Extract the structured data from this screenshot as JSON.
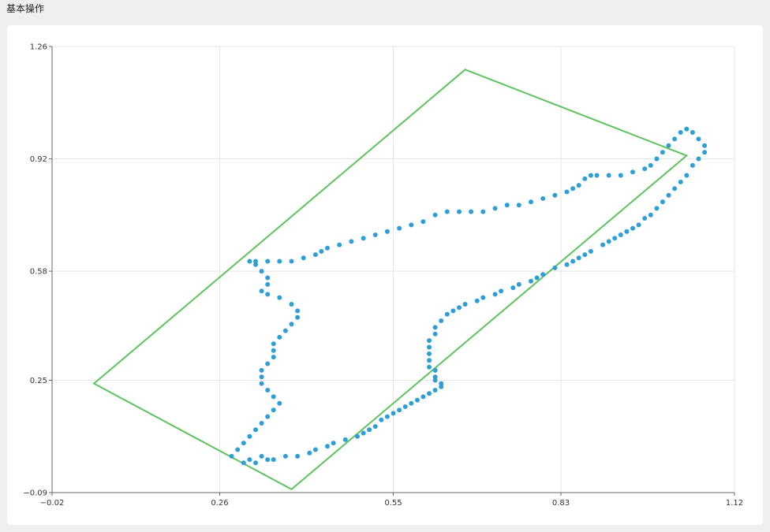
{
  "page": {
    "title": "基本操作"
  },
  "colors": {
    "points": "#2e9fd6",
    "polygon": "#5ec35e",
    "grid": "#e6e6e6",
    "axis": "#666666"
  },
  "chart_data": {
    "type": "scatter",
    "xlim": [
      -0.02,
      1.12
    ],
    "ylim": [
      -0.09,
      1.26
    ],
    "x_ticks": [
      -0.02,
      0.26,
      0.55,
      0.83,
      1.12
    ],
    "y_ticks": [
      -0.09,
      0.25,
      0.58,
      0.92,
      1.26
    ],
    "x_tick_labels": [
      "−0.02",
      "0.26",
      "0.55",
      "0.83",
      "1.12"
    ],
    "y_tick_labels": [
      "−0.09",
      "0.25",
      "0.58",
      "0.92",
      "1.26"
    ],
    "grid": true,
    "polygon": {
      "points": [
        [
          0.67,
          1.19
        ],
        [
          1.04,
          0.93
        ],
        [
          0.38,
          -0.08
        ],
        [
          0.05,
          0.24
        ]
      ]
    },
    "series": [
      {
        "values": [
          [
            0.3,
            0.0
          ],
          [
            0.31,
            0.01
          ],
          [
            0.32,
            0.0
          ],
          [
            0.33,
            0.02
          ],
          [
            0.34,
            0.01
          ],
          [
            0.35,
            0.01
          ],
          [
            0.37,
            0.02
          ],
          [
            0.39,
            0.02
          ],
          [
            0.41,
            0.03
          ],
          [
            0.42,
            0.04
          ],
          [
            0.44,
            0.05
          ],
          [
            0.45,
            0.06
          ],
          [
            0.47,
            0.07
          ],
          [
            0.49,
            0.08
          ],
          [
            0.5,
            0.09
          ],
          [
            0.51,
            0.1
          ],
          [
            0.52,
            0.11
          ],
          [
            0.53,
            0.13
          ],
          [
            0.54,
            0.14
          ],
          [
            0.55,
            0.15
          ],
          [
            0.56,
            0.16
          ],
          [
            0.57,
            0.17
          ],
          [
            0.58,
            0.18
          ],
          [
            0.59,
            0.19
          ],
          [
            0.6,
            0.2
          ],
          [
            0.61,
            0.21
          ],
          [
            0.62,
            0.22
          ],
          [
            0.63,
            0.23
          ],
          [
            0.63,
            0.24
          ],
          [
            0.62,
            0.25
          ],
          [
            0.62,
            0.26
          ],
          [
            0.62,
            0.28
          ],
          [
            0.61,
            0.29
          ],
          [
            0.61,
            0.31
          ],
          [
            0.61,
            0.33
          ],
          [
            0.61,
            0.35
          ],
          [
            0.61,
            0.37
          ],
          [
            0.62,
            0.39
          ],
          [
            0.62,
            0.41
          ],
          [
            0.63,
            0.43
          ],
          [
            0.64,
            0.45
          ],
          [
            0.65,
            0.46
          ],
          [
            0.66,
            0.47
          ],
          [
            0.67,
            0.48
          ],
          [
            0.69,
            0.49
          ],
          [
            0.7,
            0.5
          ],
          [
            0.72,
            0.51
          ],
          [
            0.73,
            0.52
          ],
          [
            0.75,
            0.53
          ],
          [
            0.76,
            0.54
          ],
          [
            0.78,
            0.55
          ],
          [
            0.79,
            0.56
          ],
          [
            0.8,
            0.57
          ],
          [
            0.82,
            0.59
          ],
          [
            0.84,
            0.6
          ],
          [
            0.85,
            0.61
          ],
          [
            0.86,
            0.62
          ],
          [
            0.87,
            0.63
          ],
          [
            0.88,
            0.64
          ],
          [
            0.9,
            0.66
          ],
          [
            0.91,
            0.67
          ],
          [
            0.92,
            0.68
          ],
          [
            0.93,
            0.69
          ],
          [
            0.94,
            0.7
          ],
          [
            0.95,
            0.71
          ],
          [
            0.96,
            0.72
          ],
          [
            0.97,
            0.74
          ],
          [
            0.98,
            0.75
          ],
          [
            0.99,
            0.77
          ],
          [
            1.0,
            0.79
          ],
          [
            1.01,
            0.81
          ],
          [
            1.02,
            0.83
          ],
          [
            1.03,
            0.85
          ],
          [
            1.04,
            0.87
          ],
          [
            1.05,
            0.9
          ],
          [
            1.06,
            0.92
          ],
          [
            1.07,
            0.94
          ],
          [
            1.07,
            0.96
          ],
          [
            1.06,
            0.98
          ],
          [
            1.05,
            1.0
          ],
          [
            1.04,
            1.01
          ],
          [
            1.03,
            1.0
          ],
          [
            1.02,
            0.98
          ],
          [
            1.01,
            0.96
          ],
          [
            1.0,
            0.94
          ],
          [
            0.99,
            0.92
          ],
          [
            0.98,
            0.9
          ],
          [
            0.97,
            0.89
          ],
          [
            0.95,
            0.88
          ],
          [
            0.93,
            0.87
          ],
          [
            0.91,
            0.87
          ],
          [
            0.89,
            0.87
          ],
          [
            0.88,
            0.87
          ],
          [
            0.87,
            0.86
          ],
          [
            0.86,
            0.84
          ],
          [
            0.85,
            0.83
          ],
          [
            0.84,
            0.82
          ],
          [
            0.82,
            0.81
          ],
          [
            0.8,
            0.8
          ],
          [
            0.78,
            0.79
          ],
          [
            0.76,
            0.78
          ],
          [
            0.74,
            0.78
          ],
          [
            0.72,
            0.77
          ],
          [
            0.7,
            0.76
          ],
          [
            0.68,
            0.76
          ],
          [
            0.66,
            0.76
          ],
          [
            0.64,
            0.76
          ],
          [
            0.62,
            0.75
          ],
          [
            0.6,
            0.73
          ],
          [
            0.58,
            0.72
          ],
          [
            0.56,
            0.71
          ],
          [
            0.54,
            0.7
          ],
          [
            0.52,
            0.69
          ],
          [
            0.5,
            0.68
          ],
          [
            0.48,
            0.67
          ],
          [
            0.46,
            0.66
          ],
          [
            0.44,
            0.65
          ],
          [
            0.43,
            0.64
          ],
          [
            0.42,
            0.63
          ],
          [
            0.4,
            0.62
          ],
          [
            0.38,
            0.61
          ],
          [
            0.36,
            0.61
          ],
          [
            0.34,
            0.61
          ],
          [
            0.32,
            0.61
          ],
          [
            0.31,
            0.61
          ],
          [
            0.32,
            0.6
          ],
          [
            0.33,
            0.58
          ],
          [
            0.34,
            0.56
          ],
          [
            0.34,
            0.54
          ],
          [
            0.33,
            0.52
          ],
          [
            0.34,
            0.51
          ],
          [
            0.36,
            0.5
          ],
          [
            0.38,
            0.48
          ],
          [
            0.39,
            0.46
          ],
          [
            0.39,
            0.44
          ],
          [
            0.38,
            0.42
          ],
          [
            0.37,
            0.4
          ],
          [
            0.36,
            0.38
          ],
          [
            0.35,
            0.36
          ],
          [
            0.35,
            0.34
          ],
          [
            0.35,
            0.32
          ],
          [
            0.34,
            0.3
          ],
          [
            0.33,
            0.28
          ],
          [
            0.33,
            0.26
          ],
          [
            0.33,
            0.24
          ],
          [
            0.34,
            0.22
          ],
          [
            0.35,
            0.2
          ],
          [
            0.36,
            0.18
          ],
          [
            0.35,
            0.16
          ],
          [
            0.34,
            0.14
          ],
          [
            0.33,
            0.12
          ],
          [
            0.32,
            0.1
          ],
          [
            0.31,
            0.08
          ],
          [
            0.3,
            0.06
          ],
          [
            0.29,
            0.04
          ],
          [
            0.28,
            0.02
          ]
        ]
      }
    ]
  }
}
